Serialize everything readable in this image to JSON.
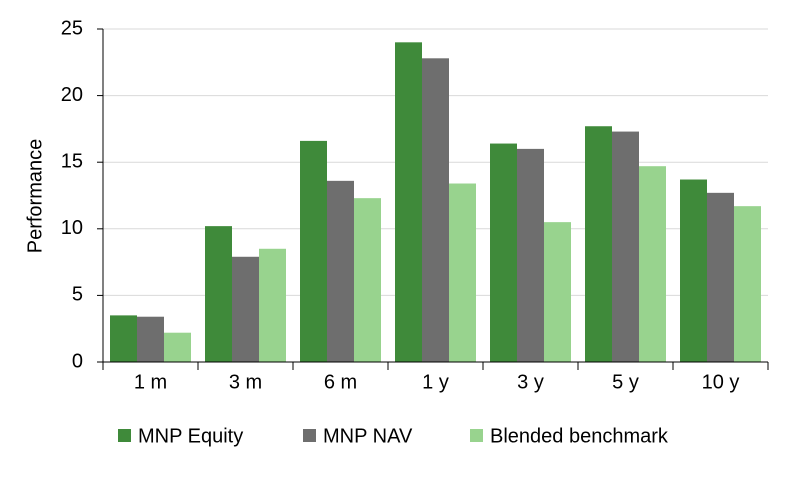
{
  "chart_data": {
    "type": "bar",
    "y_label": "Performance",
    "categories": [
      "1 m",
      "3 m",
      "6 m",
      "1 y",
      "3 y",
      "5 y",
      "10 y"
    ],
    "series": [
      {
        "name": "MNP Equity",
        "color": "#3f8a3a",
        "values": [
          3.5,
          10.2,
          16.6,
          24.0,
          16.4,
          17.7,
          13.7
        ]
      },
      {
        "name": "MNP NAV",
        "color": "#6e6e6e",
        "values": [
          3.4,
          7.9,
          13.6,
          22.8,
          16.0,
          17.3,
          12.7
        ]
      },
      {
        "name": "Blended benchmark",
        "color": "#98d38e",
        "values": [
          2.2,
          8.5,
          12.3,
          13.4,
          10.5,
          14.7,
          11.7
        ]
      }
    ],
    "ylim": [
      0,
      25
    ],
    "yticks": [
      0,
      5,
      10,
      15,
      20,
      25
    ],
    "grid": true,
    "legend": "bottom"
  }
}
